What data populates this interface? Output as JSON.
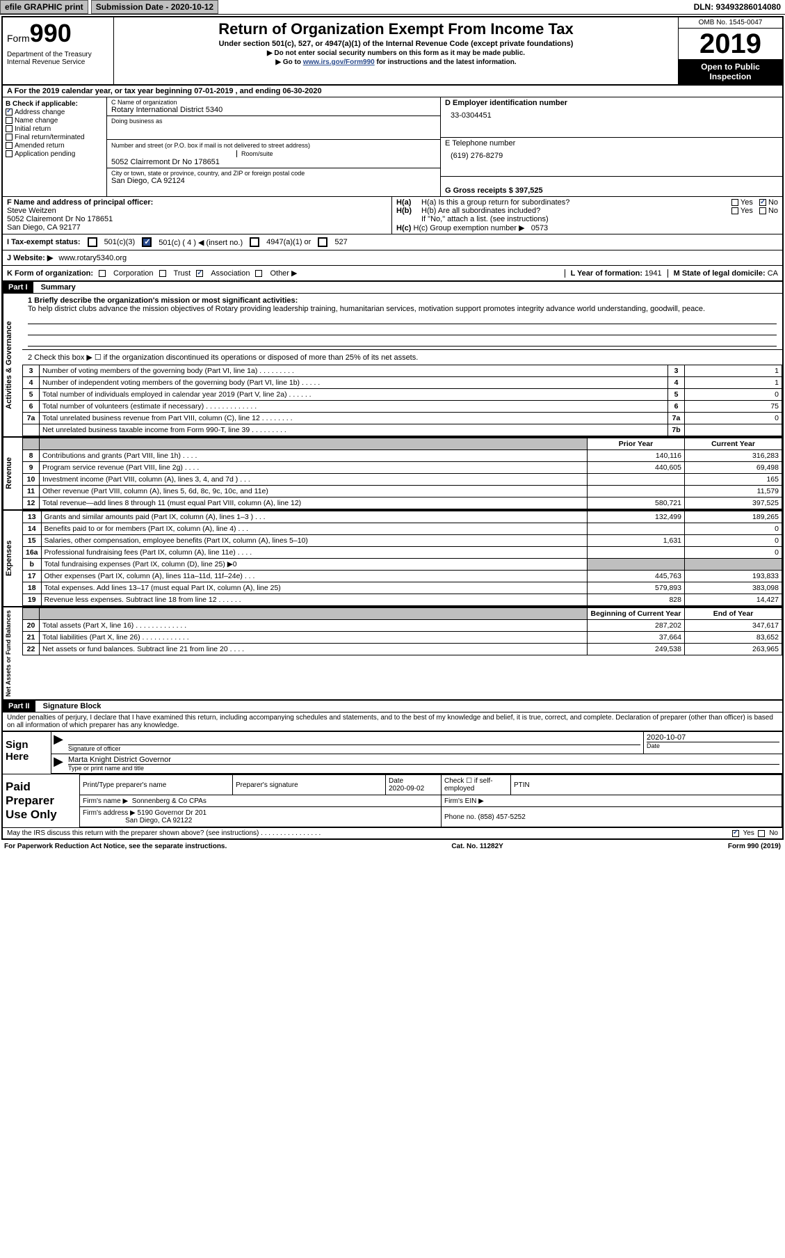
{
  "topbar": {
    "efile": "efile GRAPHIC print",
    "submission_label": "Submission Date - 2020-10-12",
    "dln": "DLN: 93493286014080"
  },
  "header": {
    "form_prefix": "Form",
    "form_number": "990",
    "dept1": "Department of the Treasury",
    "dept2": "Internal Revenue Service",
    "title": "Return of Organization Exempt From Income Tax",
    "subtitle": "Under section 501(c), 527, or 4947(a)(1) of the Internal Revenue Code (except private foundations)",
    "note1": "▶ Do not enter social security numbers on this form as it may be made public.",
    "note2_pre": "▶ Go to ",
    "note2_link": "www.irs.gov/Form990",
    "note2_post": " for instructions and the latest information.",
    "omb": "OMB No. 1545-0047",
    "year": "2019",
    "open_pub1": "Open to Public",
    "open_pub2": "Inspection"
  },
  "rowA": "A For the 2019 calendar year, or tax year beginning 07-01-2019   , and ending 06-30-2020",
  "colB": {
    "header": "B Check if applicable:",
    "items": [
      "Address change",
      "Name change",
      "Initial return",
      "Final return/terminated",
      "Amended return",
      "Application pending"
    ],
    "checked_index": 0
  },
  "colC": {
    "name_lbl": "C Name of organization",
    "name": "Rotary International District 5340",
    "dba_lbl": "Doing business as",
    "addr_lbl": "Number and street (or P.O. box if mail is not delivered to street address)",
    "room_lbl": "Room/suite",
    "addr": "5052 Clairremont Dr No 178651",
    "city_lbl": "City or town, state or province, country, and ZIP or foreign postal code",
    "city": "San Diego, CA  92124"
  },
  "colDE": {
    "ein_lbl": "D Employer identification number",
    "ein": "33-0304451",
    "phone_lbl": "E Telephone number",
    "phone": "(619) 276-8279",
    "gross_lbl": "G Gross receipts $ 397,525"
  },
  "rowF": {
    "f_lbl": "F  Name and address of principal officer:",
    "f_name": "Steve Weitzen",
    "f_addr1": "5052 Clairemont Dr No 178651",
    "f_addr2": "San Diego, CA  92177",
    "ha_lbl": "H(a)  Is this a group return for subordinates?",
    "hb_lbl": "H(b)  Are all subordinates included?",
    "hb_note": "If \"No,\" attach a list. (see instructions)",
    "hc_lbl": "H(c)  Group exemption number ▶",
    "hc_val": "0573",
    "yes": "Yes",
    "no": "No"
  },
  "rowI": {
    "label": "I  Tax-exempt status:",
    "o1": "501(c)(3)",
    "o2": "501(c) ( 4 ) ◀ (insert no.)",
    "o3": "4947(a)(1) or",
    "o4": "527"
  },
  "rowJ": {
    "label": "J  Website: ▶",
    "val": "www.rotary5340.org"
  },
  "rowK": {
    "label": "K Form of organization:",
    "o1": "Corporation",
    "o2": "Trust",
    "o3": "Association",
    "o4": "Other ▶",
    "L_lbl": "L Year of formation:",
    "L_val": "1941",
    "M_lbl": "M State of legal domicile:",
    "M_val": "CA"
  },
  "partI": {
    "tag": "Part I",
    "title": "Summary"
  },
  "mission": {
    "line1_lbl": "1  Briefly describe the organization's mission or most significant activities:",
    "text": "To help district clubs advance the mission objectives of Rotary providing leadership training, humanitarian services, motivation support promotes integrity advance world understanding, goodwill, peace."
  },
  "gov": {
    "vlabel": "Activities & Governance",
    "line2": "2   Check this box ▶ ☐  if the organization discontinued its operations or disposed of more than 25% of its net assets.",
    "rows": [
      {
        "n": "3",
        "t": "Number of voting members of the governing body (Part VI, line 1a)  .   .   .   .   .   .   .   .   .",
        "k": "3",
        "v": "1"
      },
      {
        "n": "4",
        "t": "Number of independent voting members of the governing body (Part VI, line 1b)  .   .   .   .   .",
        "k": "4",
        "v": "1"
      },
      {
        "n": "5",
        "t": "Total number of individuals employed in calendar year 2019 (Part V, line 2a)  .   .   .   .   .   .",
        "k": "5",
        "v": "0"
      },
      {
        "n": "6",
        "t": "Total number of volunteers (estimate if necessary)   .   .   .   .   .   .   .   .   .   .   .   .   .",
        "k": "6",
        "v": "75"
      },
      {
        "n": "7a",
        "t": "Total unrelated business revenue from Part VIII, column (C), line 12   .   .   .   .   .   .   .   .",
        "k": "7a",
        "v": "0"
      },
      {
        "n": "",
        "t": "Net unrelated business taxable income from Form 990-T, line 39   .   .   .   .   .   .   .   .   .",
        "k": "7b",
        "v": ""
      }
    ]
  },
  "rev": {
    "vlabel": "Revenue",
    "hdr_prior": "Prior Year",
    "hdr_curr": "Current Year",
    "rows": [
      {
        "n": "8",
        "t": "Contributions and grants (Part VIII, line 1h)   .   .   .   .",
        "p": "140,116",
        "c": "316,283"
      },
      {
        "n": "9",
        "t": "Program service revenue (Part VIII, line 2g)   .   .   .   .",
        "p": "440,605",
        "c": "69,498"
      },
      {
        "n": "10",
        "t": "Investment income (Part VIII, column (A), lines 3, 4, and 7d )   .   .   .",
        "p": "",
        "c": "165"
      },
      {
        "n": "11",
        "t": "Other revenue (Part VIII, column (A), lines 5, 6d, 8c, 9c, 10c, and 11e)",
        "p": "",
        "c": "11,579"
      },
      {
        "n": "12",
        "t": "Total revenue—add lines 8 through 11 (must equal Part VIII, column (A), line 12)",
        "p": "580,721",
        "c": "397,525"
      }
    ]
  },
  "exp": {
    "vlabel": "Expenses",
    "rows": [
      {
        "n": "13",
        "t": "Grants and similar amounts paid (Part IX, column (A), lines 1–3 )   .   .   .",
        "p": "132,499",
        "c": "189,265"
      },
      {
        "n": "14",
        "t": "Benefits paid to or for members (Part IX, column (A), line 4)   .   .   .",
        "p": "",
        "c": "0"
      },
      {
        "n": "15",
        "t": "Salaries, other compensation, employee benefits (Part IX, column (A), lines 5–10)",
        "p": "1,631",
        "c": "0"
      },
      {
        "n": "16a",
        "t": "Professional fundraising fees (Part IX, column (A), line 11e)   .   .   .   .",
        "p": "",
        "c": "0"
      },
      {
        "n": "b",
        "t": "Total fundraising expenses (Part IX, column (D), line 25) ▶0",
        "p": "__GRAY__",
        "c": "__GRAY__"
      },
      {
        "n": "17",
        "t": "Other expenses (Part IX, column (A), lines 11a–11d, 11f–24e)   .   .   .",
        "p": "445,763",
        "c": "193,833"
      },
      {
        "n": "18",
        "t": "Total expenses. Add lines 13–17 (must equal Part IX, column (A), line 25)",
        "p": "579,893",
        "c": "383,098"
      },
      {
        "n": "19",
        "t": "Revenue less expenses. Subtract line 18 from line 12   .   .   .   .   .   .",
        "p": "828",
        "c": "14,427"
      }
    ]
  },
  "net": {
    "vlabel": "Net Assets or Fund Balances",
    "hdr_begin": "Beginning of Current Year",
    "hdr_end": "End of Year",
    "rows": [
      {
        "n": "20",
        "t": "Total assets (Part X, line 16)   .   .   .   .   .   .   .   .   .   .   .   .   .",
        "p": "287,202",
        "c": "347,617"
      },
      {
        "n": "21",
        "t": "Total liabilities (Part X, line 26)   .   .   .   .   .   .   .   .   .   .   .   .",
        "p": "37,664",
        "c": "83,652"
      },
      {
        "n": "22",
        "t": "Net assets or fund balances. Subtract line 21 from line 20   .   .   .   .",
        "p": "249,538",
        "c": "263,965"
      }
    ]
  },
  "partII": {
    "tag": "Part II",
    "title": "Signature Block",
    "decl": "Under penalties of perjury, I declare that I have examined this return, including accompanying schedules and statements, and to the best of my knowledge and belief, it is true, correct, and complete. Declaration of preparer (other than officer) is based on all information of which preparer has any knowledge."
  },
  "sign": {
    "left": "Sign Here",
    "sig_lbl": "Signature of officer",
    "date": "2020-10-07",
    "date_lbl": "Date",
    "name": "Marta Knight District Governor",
    "name_lbl": "Type or print name and title"
  },
  "paid": {
    "left": "Paid Preparer Use Only",
    "h1": "Print/Type preparer's name",
    "h2": "Preparer's signature",
    "h3": "Date",
    "h3v": "2020-09-02",
    "h4": "Check ☐ if self-employed",
    "h5": "PTIN",
    "firm_lbl": "Firm's name    ▶",
    "firm": "Sonnenberg & Co CPAs",
    "ein_lbl": "Firm's EIN ▶",
    "addr_lbl": "Firm's address ▶",
    "addr1": "5190 Governor Dr 201",
    "addr2": "San Diego, CA  92122",
    "phone_lbl": "Phone no.",
    "phone": "(858) 457-5252"
  },
  "bottom": {
    "discuss": "May the IRS discuss this return with the preparer shown above? (see instructions)   .   .   .   .   .   .   .   .   .   .   .   .   .   .   .   .",
    "yes": "Yes",
    "no": "No",
    "paperwork": "For Paperwork Reduction Act Notice, see the separate instructions.",
    "cat": "Cat. No. 11282Y",
    "form": "Form 990 (2019)"
  },
  "colors": {
    "link": "#2a4b8d",
    "gray": "#bfbfbf"
  }
}
